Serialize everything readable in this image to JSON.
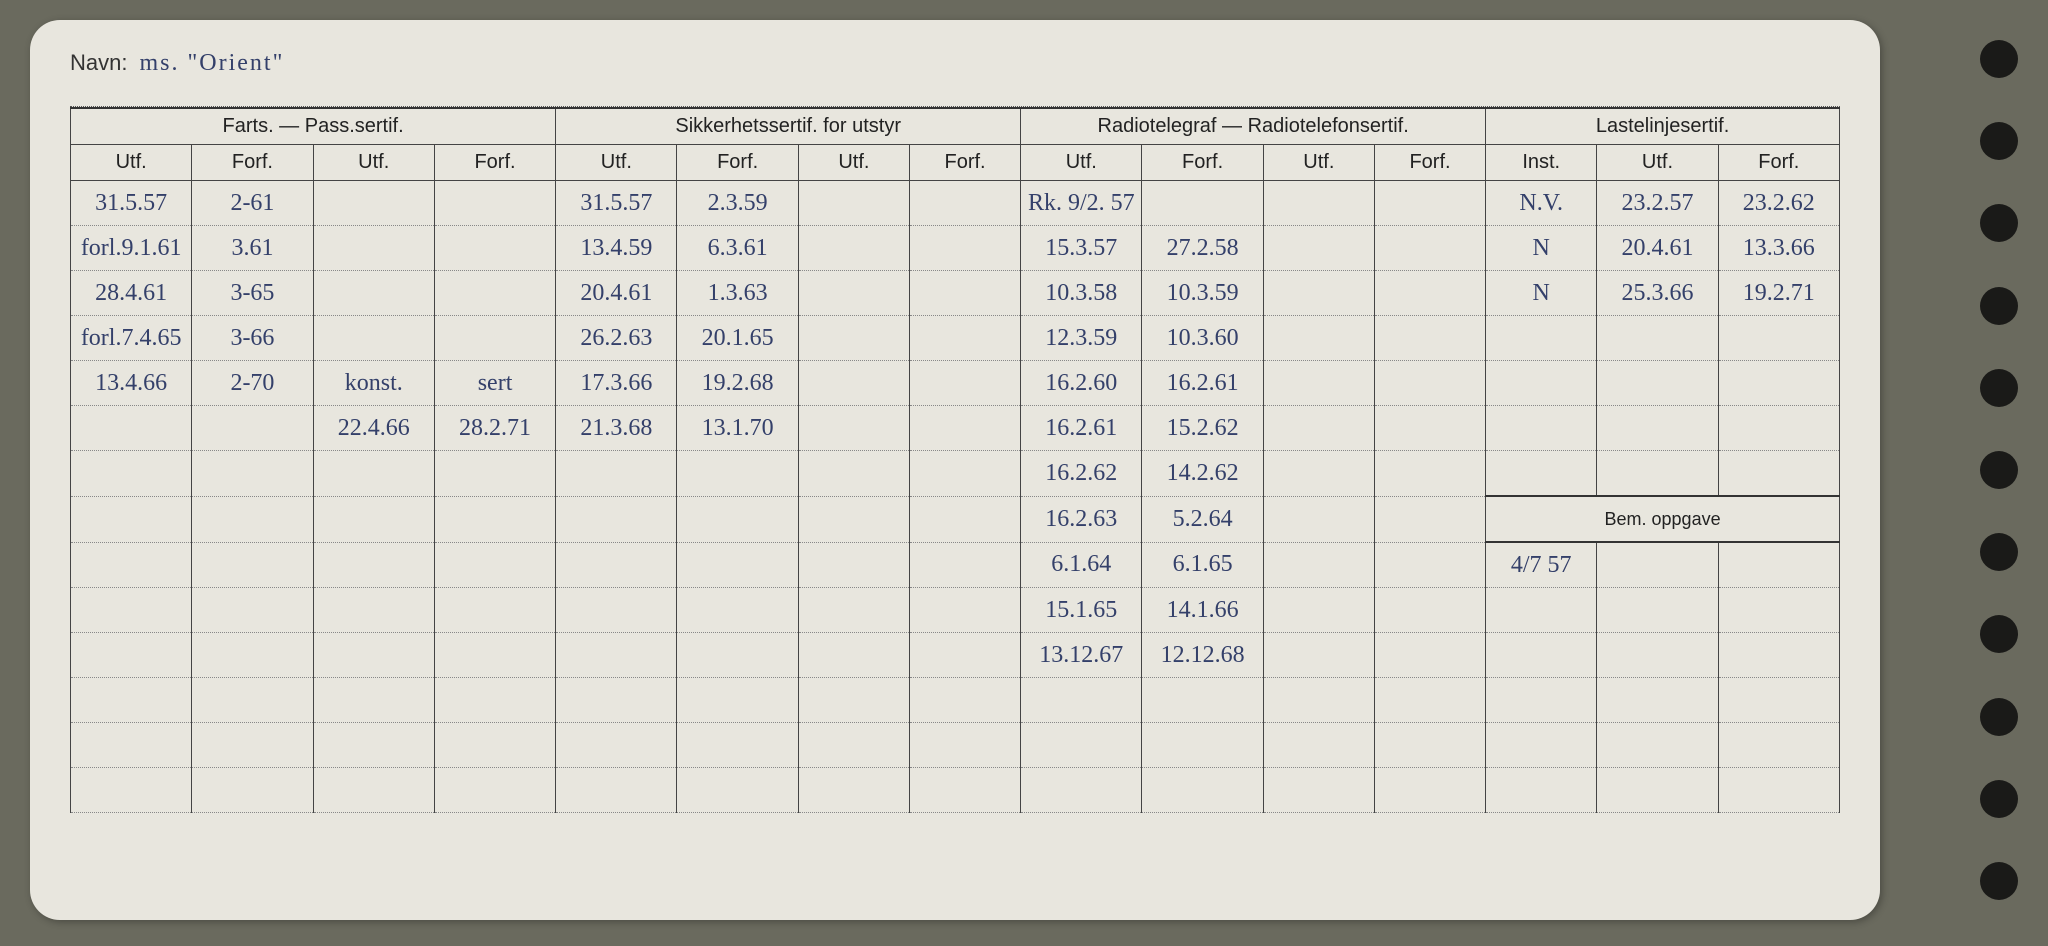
{
  "background_color": "#6a6a5e",
  "card_color": "#e8e6de",
  "hole_color": "#1a1a18",
  "ink_color": "#34406a",
  "print_color": "#222222",
  "name_label": "Navn:",
  "name_value": "ms. \"Orient\"",
  "headers": {
    "g1": "Farts. — Pass.sertif.",
    "g2": "Sikkerhetssertif. for utstyr",
    "g3": "Radiotelegraf — Radiotelefonsertif.",
    "g4": "Lastelinjesertif.",
    "utf": "Utf.",
    "forf": "Forf.",
    "inst": "Inst."
  },
  "bem_label": "Bem. oppgave",
  "bem_value": "4/7 57",
  "rows": [
    {
      "c": [
        "31.5.57",
        "2-61",
        "",
        "",
        "31.5.57",
        "2.3.59",
        "",
        "",
        "Rk. 9/2. 57",
        "",
        "",
        "",
        "N.V.",
        "23.2.57",
        "23.2.62"
      ]
    },
    {
      "c": [
        "forl.9.1.61",
        "3.61",
        "",
        "",
        "13.4.59",
        "6.3.61",
        "",
        "",
        "15.3.57",
        "27.2.58",
        "",
        "",
        "N",
        "20.4.61",
        "13.3.66"
      ]
    },
    {
      "c": [
        "28.4.61",
        "3-65",
        "",
        "",
        "20.4.61",
        "1.3.63",
        "",
        "",
        "10.3.58",
        "10.3.59",
        "",
        "",
        "N",
        "25.3.66",
        "19.2.71"
      ]
    },
    {
      "c": [
        "forl.7.4.65",
        "3-66",
        "",
        "",
        "26.2.63",
        "20.1.65",
        "",
        "",
        "12.3.59",
        "10.3.60",
        "",
        "",
        "",
        "",
        ""
      ]
    },
    {
      "c": [
        "13.4.66",
        "2-70",
        "konst.",
        "sert",
        "17.3.66",
        "19.2.68",
        "",
        "",
        "16.2.60",
        "16.2.61",
        "",
        "",
        "",
        "",
        ""
      ]
    },
    {
      "c": [
        "",
        "",
        "22.4.66",
        "28.2.71",
        "21.3.68",
        "13.1.70",
        "",
        "",
        "16.2.61",
        "15.2.62",
        "",
        "",
        "",
        "",
        ""
      ]
    },
    {
      "c": [
        "",
        "",
        "",
        "",
        "",
        "",
        "",
        "",
        "16.2.62",
        "14.2.62",
        "",
        "",
        "",
        "",
        ""
      ]
    },
    {
      "c": [
        "",
        "",
        "",
        "",
        "",
        "",
        "",
        "",
        "16.2.63",
        "5.2.64",
        "",
        "",
        "",
        "",
        ""
      ]
    },
    {
      "c": [
        "",
        "",
        "",
        "",
        "",
        "",
        "",
        "",
        "6.1.64",
        "6.1.65",
        "",
        "",
        "",
        "",
        ""
      ]
    },
    {
      "c": [
        "",
        "",
        "",
        "",
        "",
        "",
        "",
        "",
        "15.1.65",
        "14.1.66",
        "",
        "",
        "",
        "",
        ""
      ]
    },
    {
      "c": [
        "",
        "",
        "",
        "",
        "",
        "",
        "",
        "",
        "13.12.67",
        "12.12.68",
        "",
        "",
        "",
        "",
        ""
      ]
    },
    {
      "c": [
        "",
        "",
        "",
        "",
        "",
        "",
        "",
        "",
        "",
        "",
        "",
        "",
        "",
        "",
        ""
      ]
    },
    {
      "c": [
        "",
        "",
        "",
        "",
        "",
        "",
        "",
        "",
        "",
        "",
        "",
        "",
        "",
        "",
        ""
      ]
    },
    {
      "c": [
        "",
        "",
        "",
        "",
        "",
        "",
        "",
        "",
        "",
        "",
        "",
        "",
        "",
        "",
        ""
      ]
    }
  ]
}
